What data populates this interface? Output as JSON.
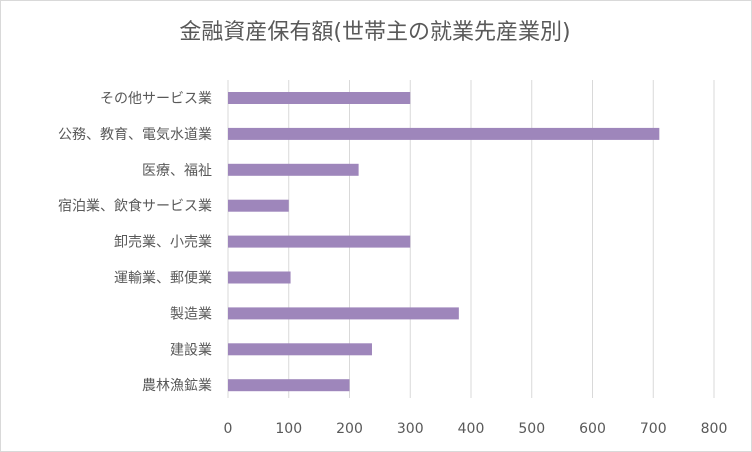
{
  "chart_data": {
    "type": "bar",
    "orientation": "horizontal",
    "title": "金融資産保有額(世帯主の就業先産業別)",
    "categories": [
      "その他サービス業",
      "公務、教育、電気水道業",
      "医療、福祉",
      "宿泊業、飲食サービス業",
      "卸売業、小売業",
      "運輸業、郵便業",
      "製造業",
      "建設業",
      "農林漁鉱業"
    ],
    "values": [
      300,
      710,
      215,
      100,
      300,
      103,
      380,
      237,
      200
    ],
    "xlim": [
      0,
      800
    ],
    "xticks": [
      "0",
      "100",
      "200",
      "300",
      "400",
      "500",
      "600",
      "700",
      "800"
    ],
    "grid": true,
    "legend": "none",
    "bar_color": "#9e86bb",
    "grid_color": "#d9d9d9"
  }
}
